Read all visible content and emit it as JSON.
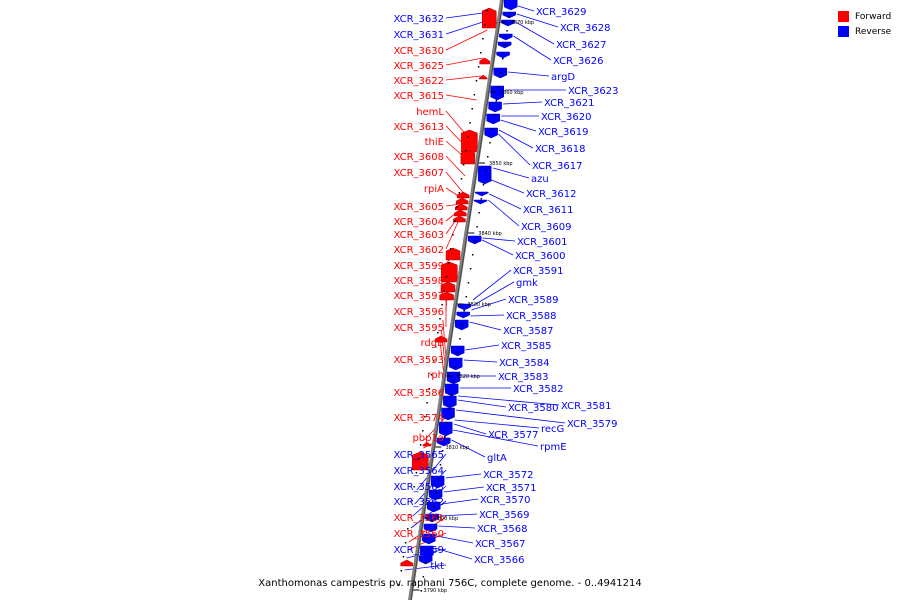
{
  "legend": [
    {
      "label": "Forward",
      "color": "#ff0000"
    },
    {
      "label": "Reverse",
      "color": "#0000ff"
    }
  ],
  "caption": "Xanthomonas campestris pv. raphani 756C, complete genome. - 0..4941214",
  "colors": {
    "forward": "#ff0000",
    "reverse": "#0000ff",
    "axis": "#808080"
  },
  "forward_labels": [
    "XCR_3632",
    "XCR_3631",
    "XCR_3630",
    "XCR_3625",
    "XCR_3622",
    "XCR_3615",
    "hemL",
    "XCR_3613",
    "thiE",
    "XCR_3608",
    "XCR_3607",
    "rpiA",
    "XCR_3605",
    "XCR_3604",
    "XCR_3603",
    "XCR_3602",
    "XCR_3599",
    "XCR_3598",
    "XCR_3597",
    "XCR_3596",
    "XCR_3595",
    "rdgB",
    "XCR_3593",
    "rph",
    "XCR_3586",
    "XCR_3574",
    "pbp1a",
    "XCR_3565",
    "XCR_3564",
    "XCR_3563",
    "XCR_3562",
    "XCR_3561",
    "XCR_3560",
    "XCR_3559",
    "tkt"
  ],
  "forward_strand": [
    "blue",
    "blue",
    "red",
    "red",
    "red",
    "red",
    "red",
    "red",
    "red",
    "red",
    "red",
    "red",
    "red",
    "red",
    "red",
    "red",
    "red",
    "red",
    "red",
    "red",
    "red",
    "red",
    "red",
    "red",
    "red",
    "red",
    "red",
    "blue",
    "blue",
    "blue",
    "blue",
    "red",
    "red",
    "blue",
    "blue"
  ],
  "reverse_labels": [
    "XCR_3629",
    "XCR_3628",
    "XCR_3627",
    "XCR_3626",
    "argD",
    "XCR_3623",
    "XCR_3621",
    "XCR_3620",
    "XCR_3619",
    "XCR_3618",
    "XCR_3617",
    "azu",
    "XCR_3612",
    "XCR_3611",
    "XCR_3609",
    "XCR_3601",
    "XCR_3600",
    "XCR_3591",
    "gmk",
    "XCR_3589",
    "XCR_3588",
    "XCR_3587",
    "XCR_3585",
    "XCR_3584",
    "XCR_3583",
    "XCR_3582",
    "XCR_3581",
    "XCR_3580",
    "XCR_3579",
    "recG",
    "XCR_3577",
    "rpmE",
    "gltA",
    "XCR_3572",
    "XCR_3571",
    "XCR_3570",
    "XCR_3569",
    "XCR_3568",
    "XCR_3567",
    "XCR_3566"
  ],
  "ticks": [
    "3870 kbp",
    "3860 kbp",
    "3850 kbp",
    "3840 kbp",
    "3830 kbp",
    "3820 kbp",
    "3810 kbp",
    "3800 kbp",
    "3790 kbp"
  ]
}
